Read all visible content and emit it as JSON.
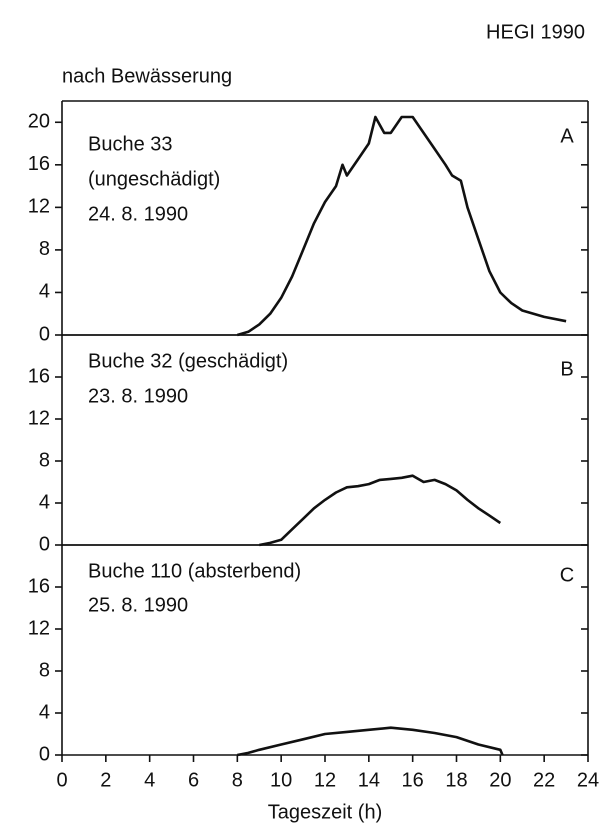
{
  "header": "HEGI 1990",
  "subtitle": "nach Bewässerung",
  "chart_data": [
    {
      "type": "line",
      "panel": "A",
      "annotations": [
        "Buche 33",
        "(ungeschädigt)",
        "24. 8. 1990"
      ],
      "color": "#111111",
      "xlim": [
        0,
        24
      ],
      "ylim": [
        0,
        22
      ],
      "yticks": [
        0,
        4,
        8,
        12,
        16,
        20
      ],
      "x": [
        8,
        8.5,
        9,
        9.5,
        10,
        10.5,
        11,
        11.5,
        12,
        12.5,
        12.8,
        13,
        13.5,
        14,
        14.3,
        14.7,
        15,
        15.5,
        16,
        16.5,
        17,
        17.5,
        17.8,
        18.2,
        18.5,
        19,
        19.5,
        20,
        20.5,
        21,
        22,
        23
      ],
      "values": [
        0,
        0.3,
        1,
        2,
        3.5,
        5.5,
        8,
        10.5,
        12.5,
        14,
        16,
        15,
        16.5,
        18,
        20.5,
        19,
        19,
        20.5,
        20.5,
        19,
        17.5,
        16,
        15,
        14.5,
        12,
        9,
        6,
        4,
        3,
        2.3,
        1.7,
        1.3
      ]
    },
    {
      "type": "line",
      "panel": "B",
      "annotations": [
        "Buche 32 (geschädigt)",
        "23. 8. 1990"
      ],
      "color": "#111111",
      "xlim": [
        0,
        24
      ],
      "ylim": [
        0,
        20
      ],
      "yticks": [
        0,
        4,
        8,
        12,
        16
      ],
      "x": [
        9,
        9.5,
        10,
        10.5,
        11,
        11.5,
        12,
        12.5,
        13,
        13.5,
        14,
        14.5,
        15,
        15.5,
        16,
        16.5,
        17,
        17.5,
        18,
        18.5,
        19,
        19.5,
        20
      ],
      "values": [
        0,
        0.2,
        0.5,
        1.5,
        2.5,
        3.5,
        4.3,
        5,
        5.5,
        5.6,
        5.8,
        6.2,
        6.3,
        6.4,
        6.6,
        6,
        6.2,
        5.8,
        5.2,
        4.3,
        3.5,
        2.8,
        2.1
      ]
    },
    {
      "type": "line",
      "panel": "C",
      "annotations": [
        "Buche 110 (absterbend)",
        "25. 8. 1990"
      ],
      "color": "#111111",
      "xlim": [
        0,
        24
      ],
      "ylim": [
        0,
        20
      ],
      "yticks": [
        0,
        4,
        8,
        12,
        16
      ],
      "xticks": [
        0,
        2,
        4,
        6,
        8,
        10,
        12,
        14,
        16,
        18,
        20,
        22,
        24
      ],
      "xlabel": "Tageszeit (h)",
      "x": [
        8,
        8.5,
        9,
        10,
        11,
        12,
        13,
        14,
        15,
        16,
        17,
        18,
        19,
        20,
        20.1
      ],
      "values": [
        0,
        0.2,
        0.5,
        1,
        1.5,
        2,
        2.2,
        2.4,
        2.6,
        2.4,
        2.1,
        1.7,
        1,
        0.5,
        0
      ]
    }
  ]
}
